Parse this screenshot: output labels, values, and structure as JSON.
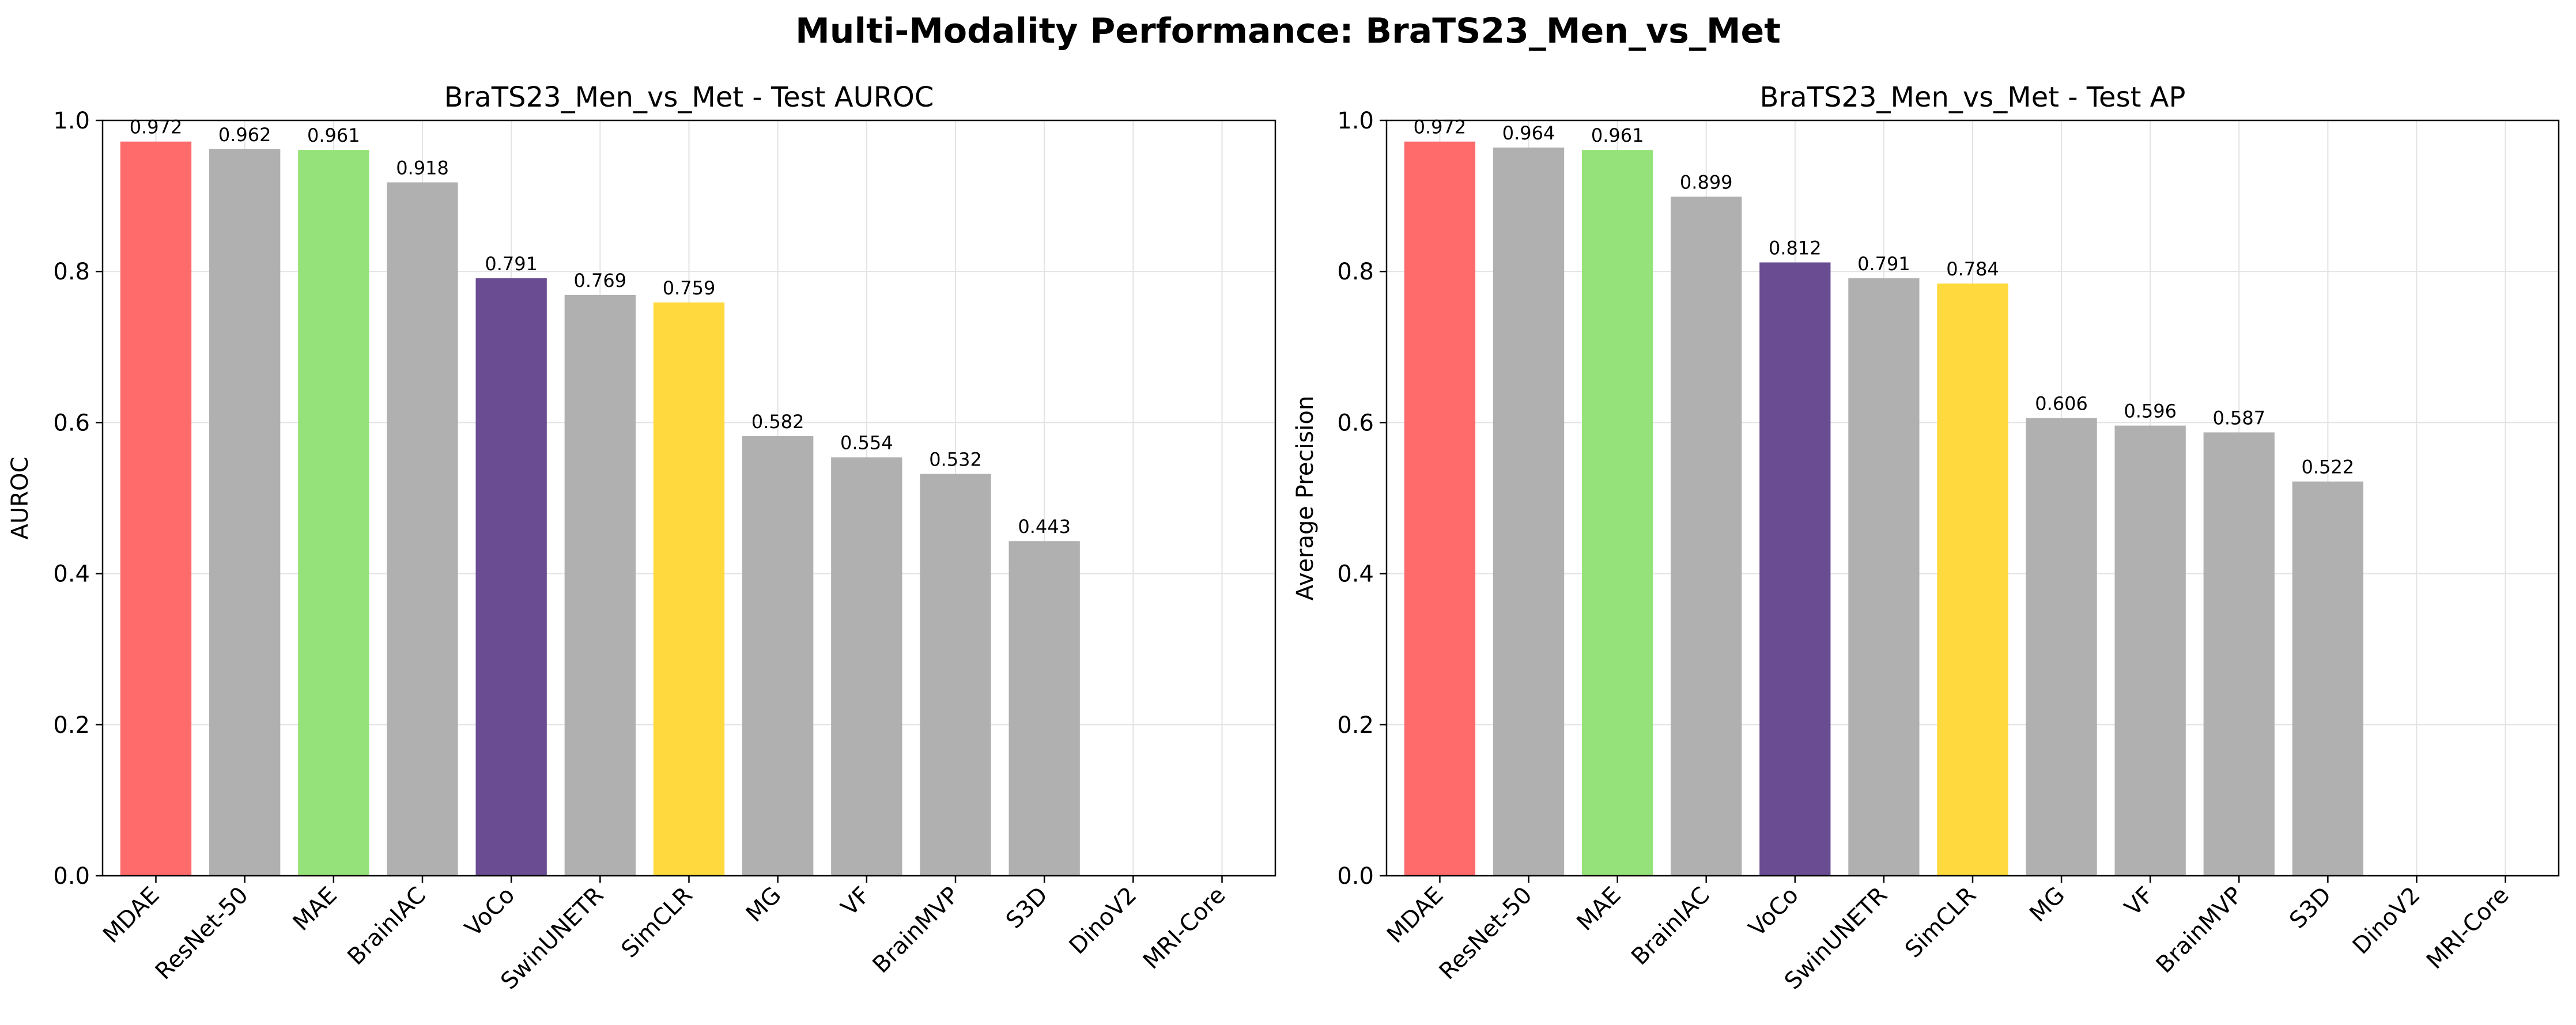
{
  "figure": {
    "title": "Multi-Modality Performance: BraTS23_Men_vs_Met"
  },
  "colors": {
    "highlight_red": "#ff6b6b",
    "highlight_green": "#96e27a",
    "highlight_purple": "#6a4c93",
    "highlight_yellow": "#ffd93d",
    "default_bar": "#b0b0b0",
    "grid": "#e3e3e3"
  },
  "chart_data": [
    {
      "type": "bar",
      "title": "BraTS23_Men_vs_Met - Test AUROC",
      "xlabel": "",
      "ylabel": "AUROC",
      "ylim": [
        0,
        1.0
      ],
      "yticks": [
        "0.0",
        "0.2",
        "0.4",
        "0.6",
        "0.8",
        "1.0"
      ],
      "grid": true,
      "categories": [
        "MDAE",
        "ResNet-50",
        "MAE",
        "BrainIAC",
        "VoCo",
        "SwinUNETR",
        "SimCLR",
        "MG",
        "VF",
        "BrainMVP",
        "S3D",
        "DinoV2",
        "MRI-Core"
      ],
      "values": [
        0.972,
        0.962,
        0.961,
        0.918,
        0.791,
        0.769,
        0.759,
        0.582,
        0.554,
        0.532,
        0.443,
        null,
        null
      ],
      "labels": [
        "0.972",
        "0.962",
        "0.961",
        "0.918",
        "0.791",
        "0.769",
        "0.759",
        "0.582",
        "0.554",
        "0.532",
        "0.443",
        "",
        ""
      ],
      "bar_colors": [
        "#ff6b6b",
        "#b0b0b0",
        "#96e27a",
        "#b0b0b0",
        "#6a4c93",
        "#b0b0b0",
        "#ffd93d",
        "#b0b0b0",
        "#b0b0b0",
        "#b0b0b0",
        "#b0b0b0",
        "#b0b0b0",
        "#b0b0b0"
      ]
    },
    {
      "type": "bar",
      "title": "BraTS23_Men_vs_Met - Test AP",
      "xlabel": "",
      "ylabel": "Average Precision",
      "ylim": [
        0,
        1.0
      ],
      "yticks": [
        "0.0",
        "0.2",
        "0.4",
        "0.6",
        "0.8",
        "1.0"
      ],
      "grid": true,
      "categories": [
        "MDAE",
        "ResNet-50",
        "MAE",
        "BrainIAC",
        "VoCo",
        "SwinUNETR",
        "SimCLR",
        "MG",
        "VF",
        "BrainMVP",
        "S3D",
        "DinoV2",
        "MRI-Core"
      ],
      "values": [
        0.972,
        0.964,
        0.961,
        0.899,
        0.812,
        0.791,
        0.784,
        0.606,
        0.596,
        0.587,
        0.522,
        null,
        null
      ],
      "labels": [
        "0.972",
        "0.964",
        "0.961",
        "0.899",
        "0.812",
        "0.791",
        "0.784",
        "0.606",
        "0.596",
        "0.587",
        "0.522",
        "",
        ""
      ],
      "bar_colors": [
        "#ff6b6b",
        "#b0b0b0",
        "#96e27a",
        "#b0b0b0",
        "#6a4c93",
        "#b0b0b0",
        "#ffd93d",
        "#b0b0b0",
        "#b0b0b0",
        "#b0b0b0",
        "#b0b0b0",
        "#b0b0b0",
        "#b0b0b0"
      ]
    }
  ]
}
